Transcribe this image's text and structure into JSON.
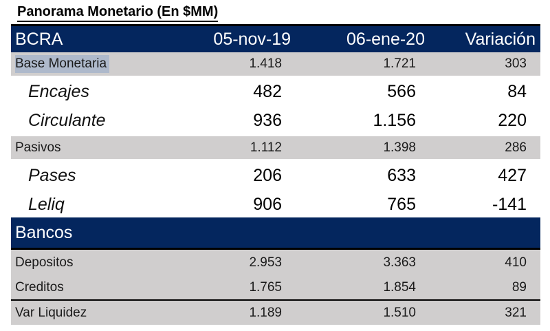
{
  "title": "Panorama Monetario (En $MM)",
  "colors": {
    "navy": "#04265E",
    "gray-row": "#D0CECE",
    "highlight": "#AEB9CB",
    "rule": "#000000"
  },
  "table": {
    "header": {
      "label": "BCRA",
      "col1": "05-nov-19",
      "col2": "06-ene-20",
      "col3": "Variación"
    },
    "rows": [
      {
        "label": "Base Monetaria",
        "v1": "1.418",
        "v2": "1.721",
        "v3": "303"
      },
      {
        "label": "Encajes",
        "v1": "482",
        "v2": "566",
        "v3": "84"
      },
      {
        "label": "Circulante",
        "v1": "936",
        "v2": "1.156",
        "v3": "220"
      },
      {
        "label": "Pasivos",
        "v1": "1.112",
        "v2": "1.398",
        "v3": "286"
      },
      {
        "label": "Pases",
        "v1": "206",
        "v2": "633",
        "v3": "427"
      },
      {
        "label": "Leliq",
        "v1": "906",
        "v2": "765",
        "v3": "-141"
      },
      {
        "label": "Depositos",
        "v1": "2.953",
        "v2": "3.363",
        "v3": "410"
      },
      {
        "label": "Creditos",
        "v1": "1.765",
        "v2": "1.854",
        "v3": "89"
      },
      {
        "label": "Var Liquidez",
        "v1": "1.189",
        "v2": "1.510",
        "v3": "321"
      }
    ],
    "bancos_label": "Bancos"
  },
  "chart_data": {
    "type": "table",
    "title": "Panorama Monetario (En $MM)",
    "columns": [
      "",
      "05-nov-19",
      "06-ene-20",
      "Variación"
    ],
    "sections": [
      {
        "name": "BCRA",
        "rows": [
          [
            "Base Monetaria",
            "1.418",
            "1.721",
            "303"
          ],
          [
            "Encajes",
            "482",
            "566",
            "84"
          ],
          [
            "Circulante",
            "936",
            "1.156",
            "220"
          ],
          [
            "Pasivos",
            "1.112",
            "1.398",
            "286"
          ],
          [
            "Pases",
            "206",
            "633",
            "427"
          ],
          [
            "Leliq",
            "906",
            "765",
            "-141"
          ]
        ]
      },
      {
        "name": "Bancos",
        "rows": [
          [
            "Depositos",
            "2.953",
            "3.363",
            "410"
          ],
          [
            "Creditos",
            "1.765",
            "1.854",
            "89"
          ],
          [
            "Var Liquidez",
            "1.189",
            "1.510",
            "321"
          ]
        ]
      }
    ],
    "notes": "Numbers use Spanish thousands separator (.) ; units $MM"
  }
}
